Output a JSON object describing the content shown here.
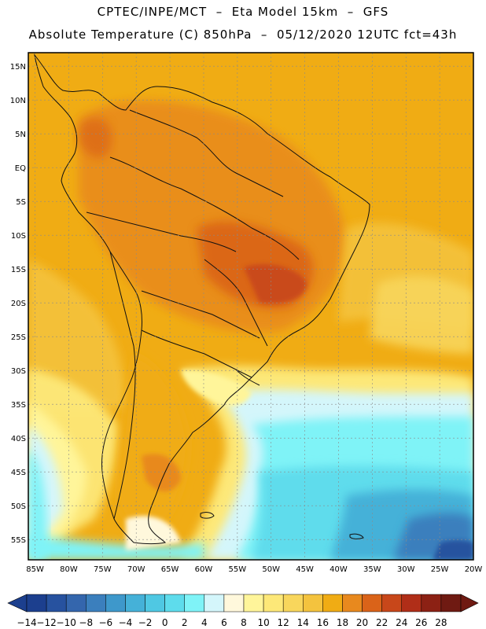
{
  "header": {
    "line1": "CPTEC/INPE/MCT  –  Eta Model 15km  –  GFS",
    "line2": "Absolute Temperature (C) 850hPa  –  05/12/2020 12UTC fct=43h"
  },
  "map": {
    "lon_range": [
      -86,
      -20
    ],
    "lat_range": [
      -58,
      17
    ],
    "lat_labels": [
      "15N",
      "10N",
      "5N",
      "EQ",
      "5S",
      "10S",
      "15S",
      "20S",
      "25S",
      "30S",
      "35S",
      "40S",
      "45S",
      "50S",
      "55S"
    ],
    "lon_labels": [
      "85W",
      "80W",
      "75W",
      "70W",
      "65W",
      "60W",
      "55W",
      "50W",
      "45W",
      "40W",
      "35W",
      "30W",
      "25W",
      "20W"
    ]
  },
  "colorbar": {
    "labels": [
      "-14",
      "-12",
      "-10",
      "-8",
      "-6",
      "-4",
      "-2",
      "0",
      "2",
      "4",
      "6",
      "8",
      "10",
      "12",
      "14",
      "16",
      "18",
      "20",
      "22",
      "24",
      "26",
      "28"
    ],
    "colors": [
      "#1c3f8e",
      "#27529f",
      "#3466ad",
      "#3b7fbd",
      "#3e98cb",
      "#45b1d8",
      "#4fc8e3",
      "#5edcec",
      "#7ff3f7",
      "#d4f6fb",
      "#fff8dc",
      "#fff59a",
      "#fde878",
      "#f8d65c",
      "#f4c33e",
      "#f0ac14",
      "#e8891e",
      "#da6319",
      "#c8471a",
      "#b02e18",
      "#8c2114",
      "#6f1a12"
    ]
  },
  "icons": [
    "left-arrow-icon",
    "right-arrow-icon"
  ]
}
